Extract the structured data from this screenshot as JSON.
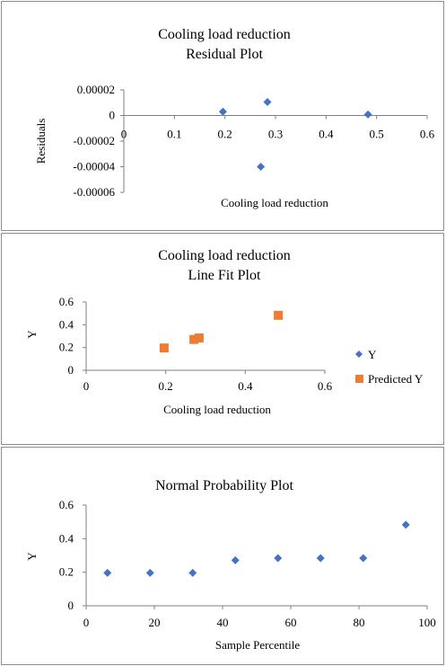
{
  "chart_data": [
    {
      "type": "scatter",
      "title_lines": [
        "Cooling load reduction",
        "Residual Plot"
      ],
      "xlabel": "Cooling load reduction",
      "ylabel": "Residuals",
      "xlim": [
        0,
        0.6
      ],
      "ylim": [
        -6e-05,
        2e-05
      ],
      "x_ticks": [
        "0",
        "0.1",
        "0.2",
        "0.3",
        "0.4",
        "0.5",
        "0.6"
      ],
      "y_ticks": [
        "0.00002",
        "0",
        "-0.00002",
        "-0.00004",
        "-0.00006"
      ],
      "x": [
        0.196,
        0.271,
        0.284,
        0.483
      ],
      "y": [
        3e-06,
        -4e-05,
        1.05e-05,
        8e-07
      ],
      "marker_color": "#4472C4",
      "grid": false,
      "legend": "none"
    },
    {
      "type": "scatter",
      "title_lines": [
        "Cooling load reduction",
        "Line Fit  Plot"
      ],
      "xlabel": "Cooling load reduction",
      "ylabel": "Y",
      "xlim": [
        0,
        0.6
      ],
      "ylim": [
        0,
        0.6
      ],
      "x_ticks": [
        "0",
        "0.2",
        "0.4",
        "0.6"
      ],
      "y_ticks": [
        "0.6",
        "0.4",
        "0.2",
        "0"
      ],
      "series": [
        {
          "name": "Y",
          "color": "#4472C4",
          "marker": "diamond",
          "x": [
            0.196,
            0.271,
            0.284,
            0.483
          ],
          "y": [
            0.196,
            0.271,
            0.284,
            0.483
          ]
        },
        {
          "name": "Predicted Y",
          "color": "#ED7D31",
          "marker": "square",
          "x": [
            0.196,
            0.271,
            0.284,
            0.483
          ],
          "y": [
            0.196,
            0.271,
            0.284,
            0.483
          ]
        }
      ],
      "grid": false,
      "legend": "right"
    },
    {
      "type": "scatter",
      "title_lines": [
        "Normal Probability Plot"
      ],
      "xlabel": "Sample Percentile",
      "ylabel": "Y",
      "xlim": [
        0,
        100
      ],
      "ylim": [
        0,
        0.6
      ],
      "x_ticks": [
        "0",
        "20",
        "40",
        "60",
        "80",
        "100"
      ],
      "y_ticks": [
        "0.6",
        "0.4",
        "0.2",
        "0"
      ],
      "x": [
        6.25,
        18.75,
        31.25,
        43.75,
        56.25,
        68.75,
        81.25,
        93.75
      ],
      "y": [
        0.196,
        0.196,
        0.196,
        0.271,
        0.284,
        0.284,
        0.284,
        0.483
      ],
      "marker_color": "#4472C4",
      "grid": false,
      "legend": "none"
    }
  ]
}
